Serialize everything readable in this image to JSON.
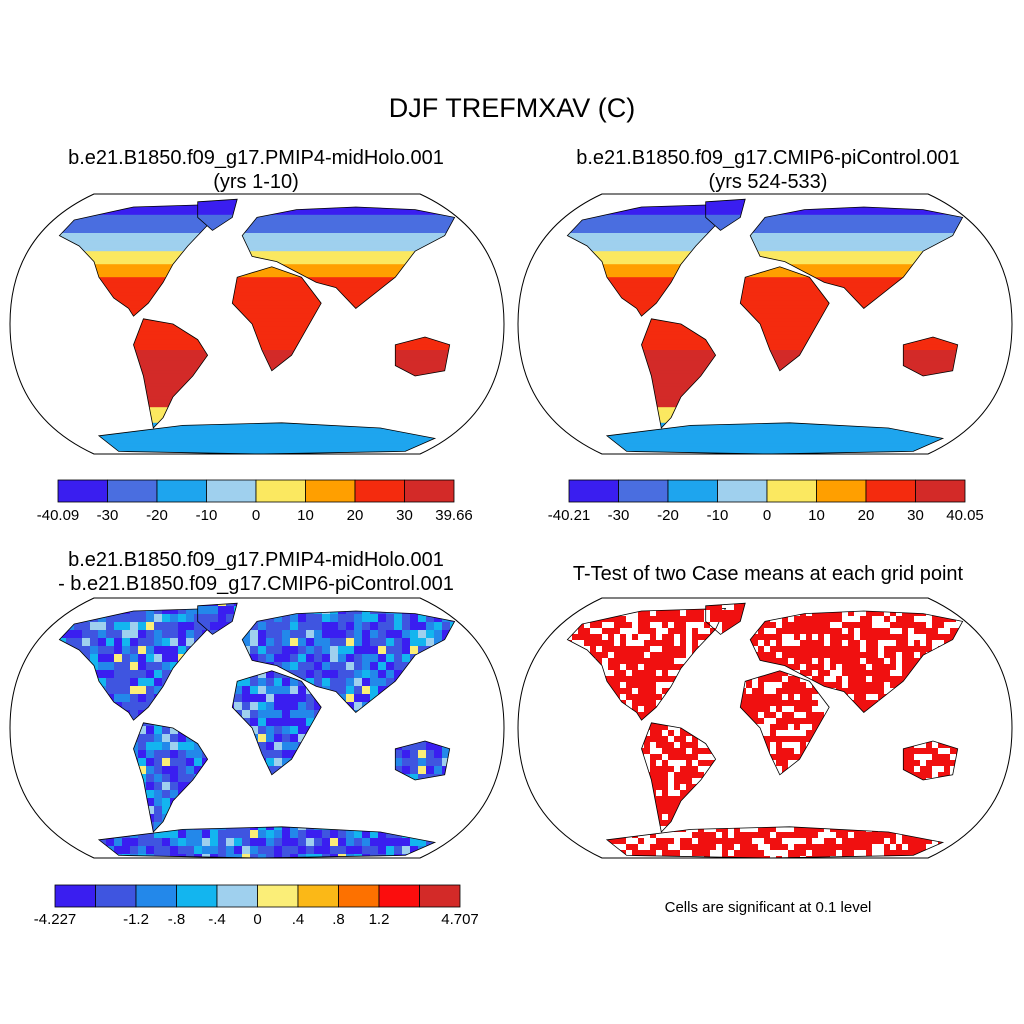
{
  "figure": {
    "title": "DJF TREFMXAV (C)"
  },
  "panels": [
    {
      "title_line1": "b.e21.B1850.f09_g17.PMIP4-midHolo.001",
      "title_line2": "(yrs 1-10)",
      "colorbar": {
        "colors": [
          "#3a1ef0",
          "#4a6ee0",
          "#1ea5ee",
          "#9fd0ee",
          "#fbe860",
          "#ff9f00",
          "#f42b0e",
          "#d32a28"
        ],
        "labels": [
          "-40.09",
          "-30",
          "-20",
          "-10",
          "0",
          "10",
          "20",
          "30",
          "39.66"
        ]
      }
    },
    {
      "title_line1": "b.e21.B1850.f09_g17.CMIP6-piControl.001",
      "title_line2": "(yrs 524-533)",
      "colorbar": {
        "colors": [
          "#3a1ef0",
          "#4a6ee0",
          "#1ea5ee",
          "#9fd0ee",
          "#fbe860",
          "#ff9f00",
          "#f42b0e",
          "#d32a28"
        ],
        "labels": [
          "-40.21",
          "-30",
          "-20",
          "-10",
          "0",
          "10",
          "20",
          "30",
          "40.05"
        ]
      }
    },
    {
      "title_line1": "b.e21.B1850.f09_g17.PMIP4-midHolo.001",
      "title_line2": "- b.e21.B1850.f09_g17.CMIP6-piControl.001",
      "colorbar": {
        "colors": [
          "#3a1ef0",
          "#3f55e0",
          "#2388ea",
          "#13b5ef",
          "#9fd0ee",
          "#fbee78",
          "#fbb817",
          "#fd7100",
          "#fb0d0d",
          "#d32a28"
        ],
        "labels": [
          "-4.227",
          "",
          "-1.2",
          "-.8",
          "-.4",
          "0",
          ".4",
          ".8",
          "1.2",
          "",
          "4.707"
        ]
      }
    },
    {
      "title_line1": "T-Test of two Case means at each grid point",
      "note": "Cells are significant at 0.1 level",
      "sig_color": "#f01010"
    }
  ]
}
